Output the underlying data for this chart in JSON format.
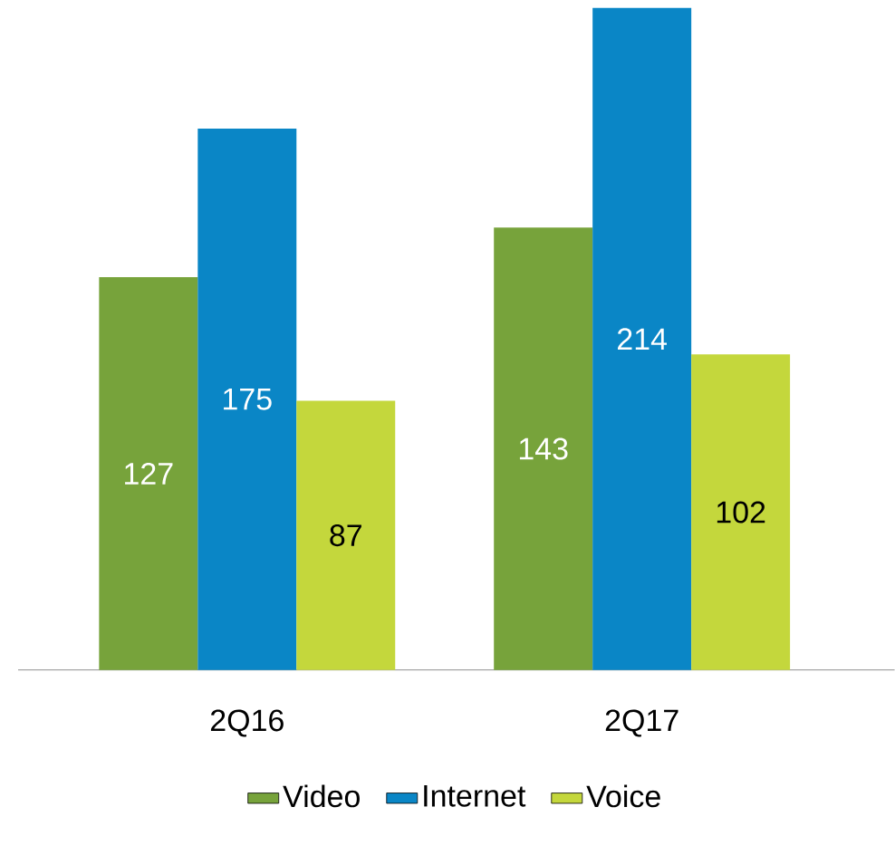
{
  "chart_data": {
    "type": "bar",
    "categories": [
      "2Q16",
      "2Q17"
    ],
    "series": [
      {
        "name": "Video",
        "color": "#77a33b",
        "values": [
          127,
          143
        ]
      },
      {
        "name": "Internet",
        "color": "#0a86c6",
        "values": [
          175,
          214
        ]
      },
      {
        "name": "Voice",
        "color": "#c4d73c",
        "values": [
          87,
          102
        ]
      }
    ],
    "data_labels": true,
    "legend": "bottom"
  }
}
